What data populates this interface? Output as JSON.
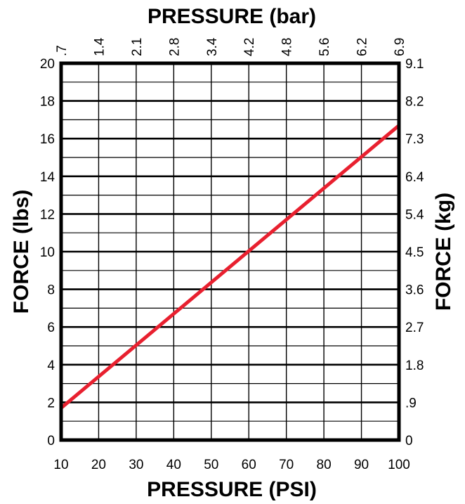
{
  "chart_data": {
    "type": "line",
    "top_axis": {
      "label": "PRESSURE (bar)",
      "ticks": [
        ".7",
        "1.4",
        "2.1",
        "2.8",
        "3.4",
        "4.2",
        "4.8",
        "5.6",
        "6.2",
        "6.9"
      ]
    },
    "bottom_axis": {
      "label": "PRESSURE (PSI)",
      "ticks": [
        "10",
        "20",
        "30",
        "40",
        "50",
        "60",
        "70",
        "80",
        "90",
        "100"
      ],
      "range": [
        10,
        100
      ]
    },
    "left_axis": {
      "label": "FORCE (lbs)",
      "ticks": [
        "0",
        "2",
        "4",
        "6",
        "8",
        "10",
        "12",
        "14",
        "16",
        "18",
        "20"
      ],
      "range": [
        0,
        20
      ]
    },
    "right_axis": {
      "label": "FORCE (kg)",
      "ticks": [
        "0",
        ".9",
        "1.8",
        "2.7",
        "3.6",
        "4.5",
        "5.4",
        "6.4",
        "7.3",
        "8.2",
        "9.1"
      ]
    },
    "grid": true,
    "series": [
      {
        "color": "#e8202f",
        "points": [
          {
            "x": 10,
            "y": 1.7
          },
          {
            "x": 100,
            "y": 16.7
          }
        ]
      }
    ]
  }
}
